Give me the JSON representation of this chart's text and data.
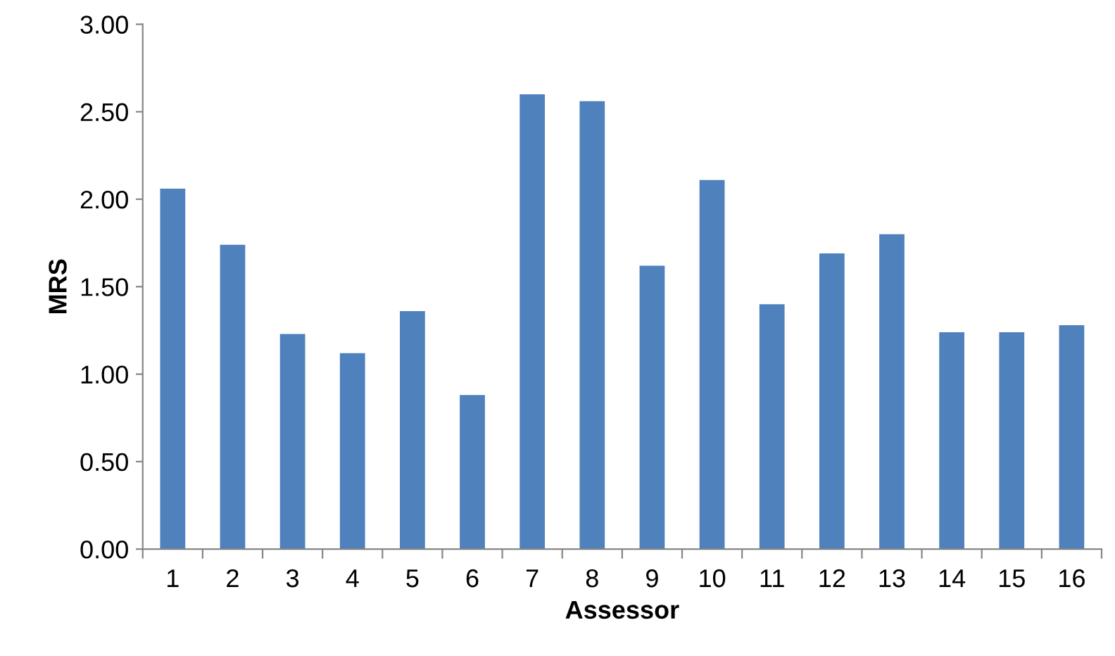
{
  "chart_data": {
    "type": "bar",
    "xlabel": "Assessor",
    "ylabel": "MRS",
    "categories": [
      "1",
      "2",
      "3",
      "4",
      "5",
      "6",
      "7",
      "8",
      "9",
      "10",
      "11",
      "12",
      "13",
      "14",
      "15",
      "16"
    ],
    "values": [
      2.06,
      1.74,
      1.23,
      1.12,
      1.36,
      0.88,
      2.6,
      2.56,
      1.62,
      2.11,
      1.4,
      1.69,
      1.8,
      1.24,
      1.24,
      1.28
    ],
    "color": "#4f81bd",
    "ylim": [
      0,
      3
    ],
    "yticks": [
      {
        "value": 0,
        "label": "0.00"
      },
      {
        "value": 0.5,
        "label": "0.50"
      },
      {
        "value": 1,
        "label": "1.00"
      },
      {
        "value": 1.5,
        "label": "1.50"
      },
      {
        "value": 2,
        "label": "2.00"
      },
      {
        "value": 2.5,
        "label": "2.50"
      },
      {
        "value": 3,
        "label": "3.00"
      }
    ],
    "grid": false,
    "legend": false
  }
}
